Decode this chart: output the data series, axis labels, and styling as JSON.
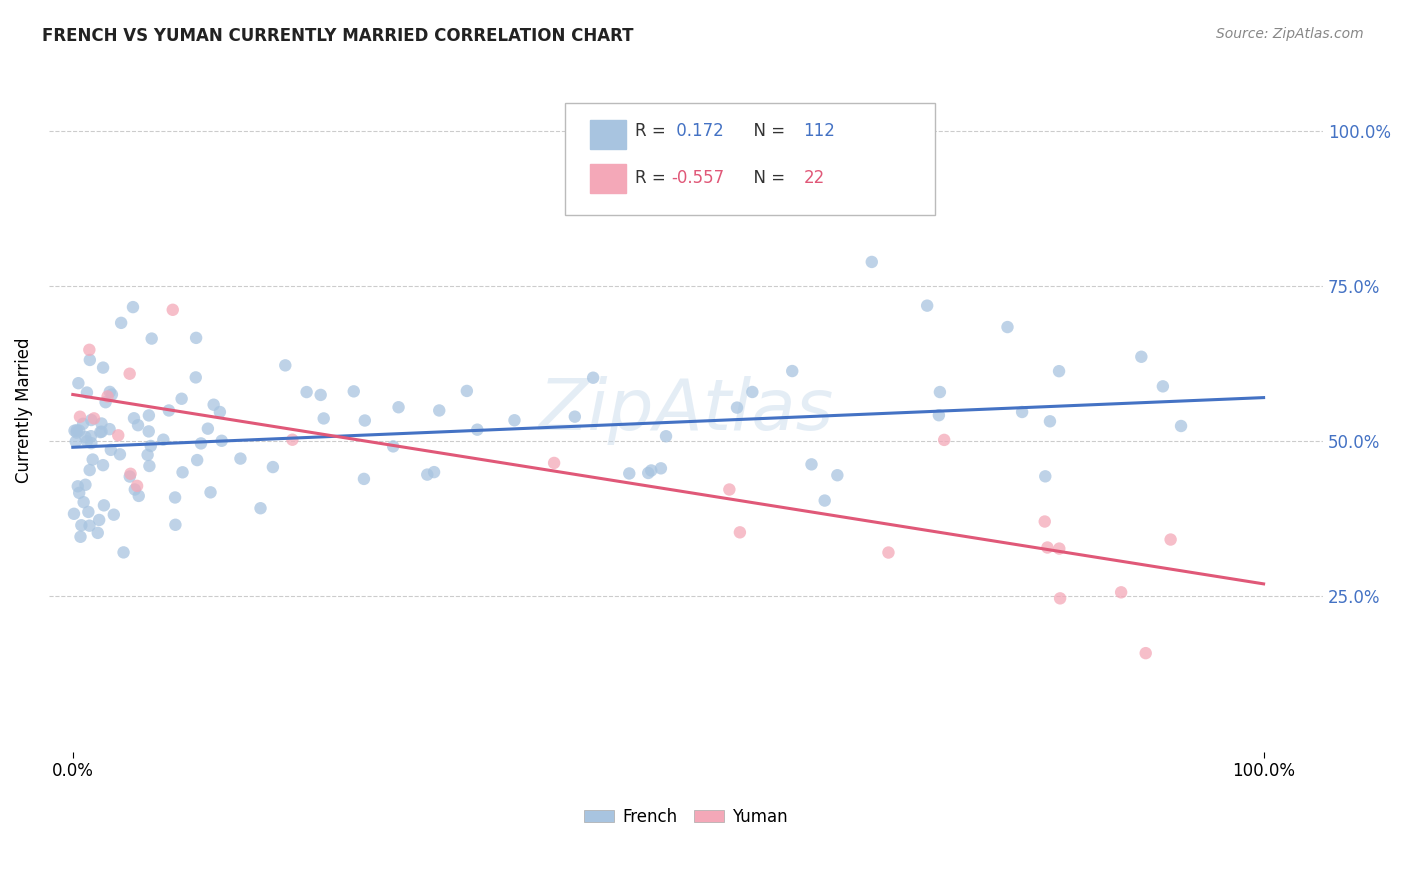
{
  "title": "FRENCH VS YUMAN CURRENTLY MARRIED CORRELATION CHART",
  "source": "Source: ZipAtlas.com",
  "ylabel": "Currently Married",
  "legend_french": "French",
  "legend_yuman": "Yuman",
  "r_french": 0.172,
  "n_french": 112,
  "r_yuman": -0.557,
  "n_yuman": 22,
  "french_color": "#a8c4e0",
  "yuman_color": "#f4a8b8",
  "french_line_color": "#4472c4",
  "yuman_line_color": "#e05878",
  "right_tick_color": "#4472c4",
  "watermark": "ZipAtlas",
  "background_color": "#ffffff",
  "grid_color": "#cccccc",
  "french_slope": 0.08,
  "french_intercept": 0.49,
  "yuman_slope": -0.305,
  "yuman_intercept": 0.575,
  "xlim": [
    -0.02,
    1.05
  ],
  "ylim": [
    0.0,
    1.1
  ],
  "yticks": [
    0.25,
    0.5,
    0.75,
    1.0
  ],
  "ytick_labels": [
    "25.0%",
    "50.0%",
    "75.0%",
    "100.0%"
  ],
  "scatter_size": 80,
  "scatter_alpha": 0.75,
  "seed": 42
}
